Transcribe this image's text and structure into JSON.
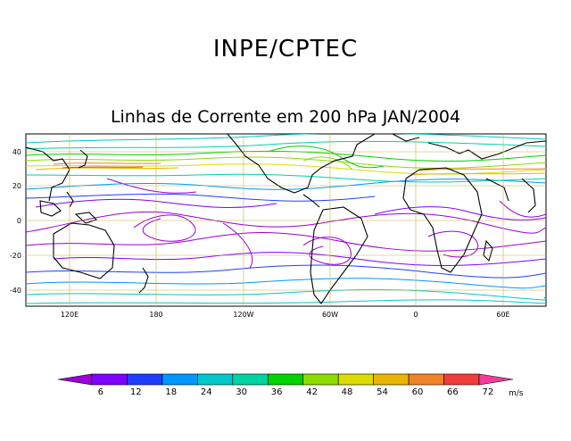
{
  "header": {
    "org": "INPE/CPTEC"
  },
  "plot": {
    "title": "Linhas de Corrente em 200 hPa JAN/2004",
    "lat_ticks": [
      "40",
      "20",
      "0",
      "-20",
      "-40"
    ],
    "lon_ticks": [
      "120E",
      "180",
      "120W",
      "60W",
      "0",
      "60E"
    ]
  },
  "colorbar": {
    "labels": [
      "6",
      "12",
      "18",
      "24",
      "30",
      "36",
      "42",
      "48",
      "54",
      "60",
      "66",
      "72"
    ],
    "colors": [
      "#9a00d6",
      "#7f00ff",
      "#1f3dff",
      "#0096ff",
      "#00c8c8",
      "#00d2a0",
      "#00d200",
      "#8cdc00",
      "#dcdc00",
      "#ebb400",
      "#f08228",
      "#f03c3c",
      "#f03c9a"
    ],
    "unit": "m/s"
  }
}
